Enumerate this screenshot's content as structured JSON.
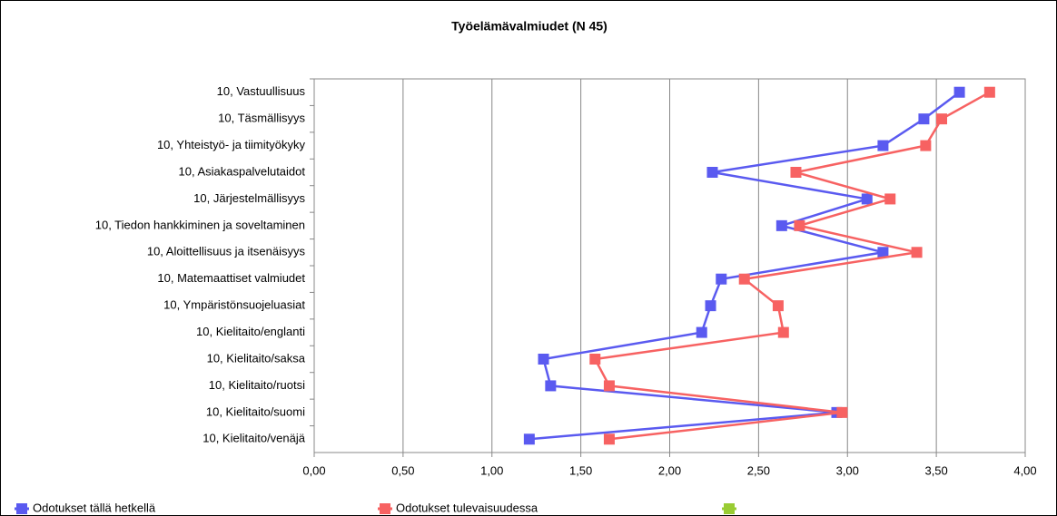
{
  "chart_data": {
    "type": "line",
    "orientation": "horizontal",
    "title": "Työelämävalmiudet (N 45)",
    "categories": [
      "10, Vastuullisuus",
      "10, Täsmällisyys",
      "10, Yhteistyö- ja tiimityökyky",
      "10, Asiakaspalvelutaidot",
      "10, Järjestelmällisyys",
      "10, Tiedon hankkiminen ja soveltaminen",
      "10, Aloittellisuus ja itsenäisyys",
      "10, Matemaattiset valmiudet",
      "10, Ympäristönsuojeluasiat",
      "10, Kielitaito/englanti",
      "10, Kielitaito/saksa",
      "10, Kielitaito/ruotsi",
      "10, Kielitaito/suomi",
      "10, Kielitaito/venäjä"
    ],
    "series": [
      {
        "name": "Odotukset tällä hetkellä",
        "color": "#5a5af0",
        "values": [
          3.63,
          3.43,
          3.2,
          2.24,
          3.11,
          2.63,
          3.2,
          2.29,
          2.23,
          2.18,
          1.29,
          1.33,
          2.94,
          1.21
        ]
      },
      {
        "name": "Odotukset tulevaisuudessa",
        "color": "#f76262",
        "values": [
          3.8,
          3.53,
          3.44,
          2.71,
          3.24,
          2.73,
          3.39,
          2.42,
          2.61,
          2.64,
          1.58,
          1.66,
          2.97,
          1.66
        ]
      }
    ],
    "xlim": [
      0,
      4
    ],
    "xticks": [
      {
        "value": 0,
        "label": "0,00"
      },
      {
        "value": 0.5,
        "label": "0,50"
      },
      {
        "value": 1,
        "label": "1,00"
      },
      {
        "value": 1.5,
        "label": "1,50"
      },
      {
        "value": 2,
        "label": "2,00"
      },
      {
        "value": 2.5,
        "label": "2,50"
      },
      {
        "value": 3,
        "label": "3,00"
      },
      {
        "value": 3.5,
        "label": "3,50"
      },
      {
        "value": 4,
        "label": "4,00"
      }
    ],
    "grid": true
  }
}
